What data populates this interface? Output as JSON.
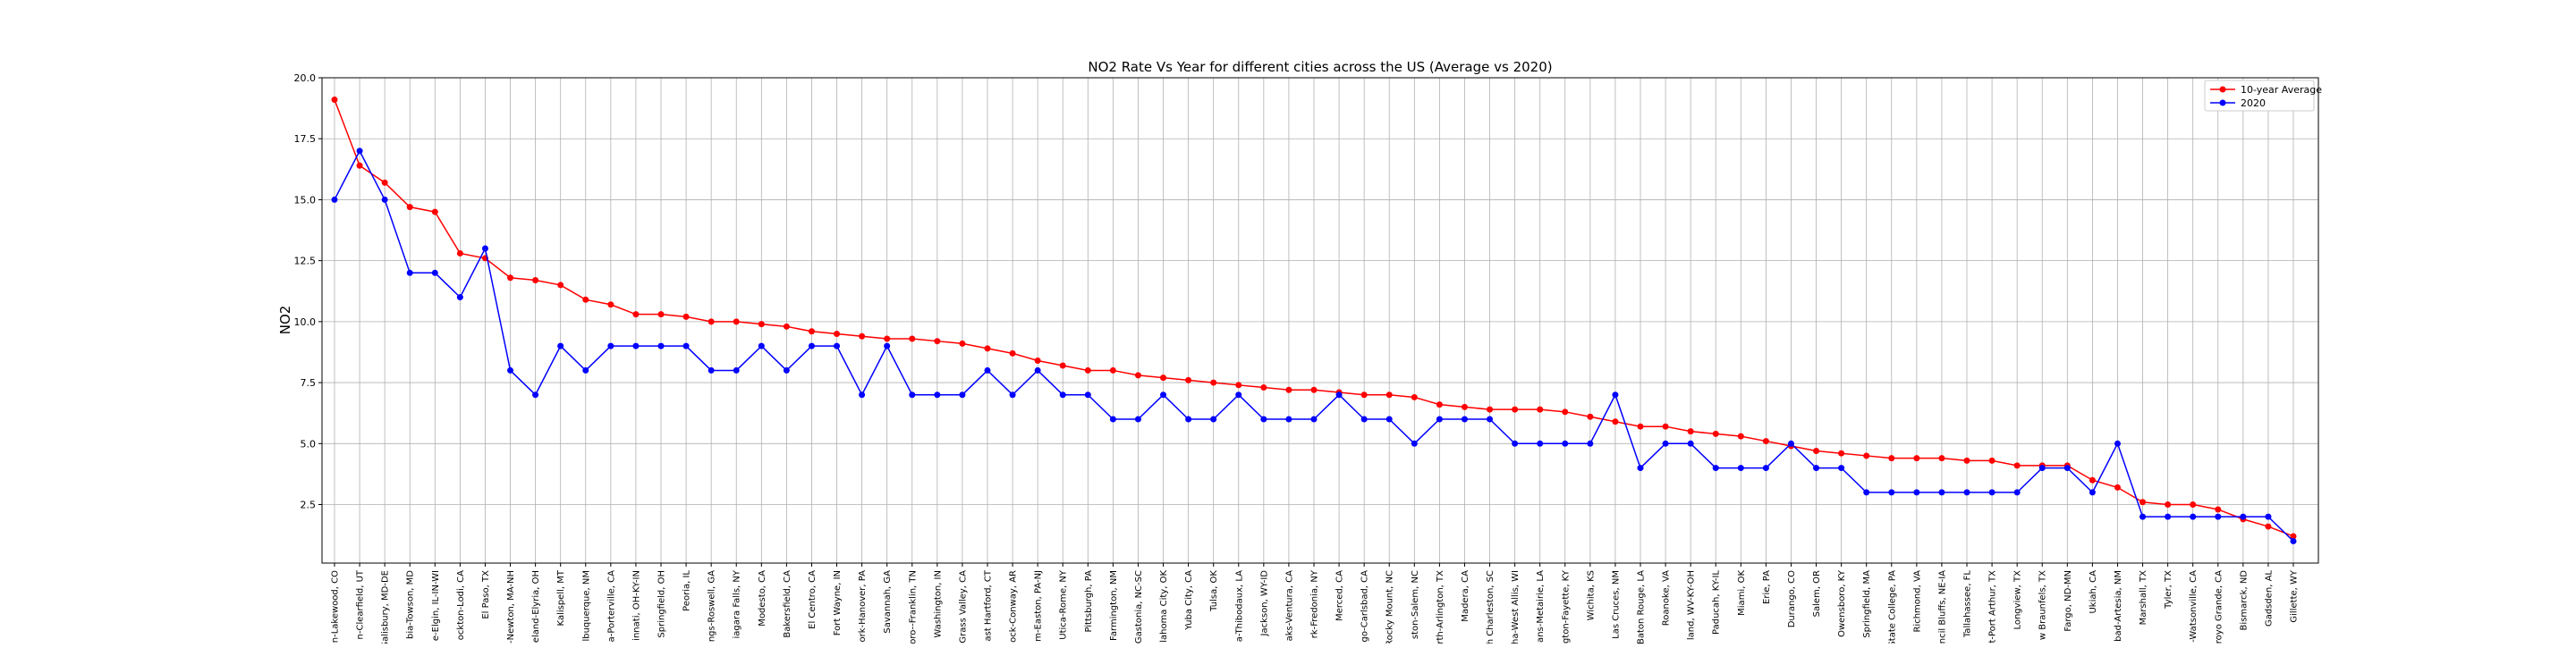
{
  "chart_data": {
    "type": "line",
    "title": "NO2 Rate Vs Year for different cities across the US (Average vs 2020)",
    "xlabel": "",
    "ylabel": "NO2",
    "ylim": [
      0.1,
      20.0
    ],
    "yticks": [
      "2.5",
      "5.0",
      "7.5",
      "10.0",
      "12.5",
      "15.0",
      "17.5",
      "20.0"
    ],
    "ytick_values": [
      2.5,
      5.0,
      7.5,
      10.0,
      12.5,
      15.0,
      17.5,
      20.0
    ],
    "grid": true,
    "legend_position": "top-right",
    "categories": [
      "n-Lakewood, CO",
      "n-Clearfield, UT",
      "Salisbury, MD-DE",
      "bia-Towson, MD",
      "e-Elgin, IL-IN-WI",
      "ockton-Lodi, CA",
      "El Paso, TX",
      "-Newton, MA-NH",
      "eland-Elyria, OH",
      "Kalispell, MT",
      "lbuquerque, NM",
      "a-Porterville, CA",
      "innati, OH-KY-IN",
      "Springfield, OH",
      "Peoria, IL",
      "ngs-Roswell, GA",
      "iagara Falls, NY",
      "Modesto, CA",
      "Bakersfield, CA",
      "El Centro, CA",
      "Fort Wayne, IN",
      "ork-Hanover, PA",
      "Savannah, GA",
      "oro--Franklin, TN",
      "Washington, IN",
      "Grass Valley, CA",
      "ast Hartford, CT",
      "ock-Conway, AR",
      "m-Easton, PA-NJ",
      "Utica-Rome, NY",
      "Pittsburgh, PA",
      "Farmington, NM",
      "Gastonia, NC-SC",
      "lahoma City, OK",
      "Yuba City, CA",
      "Tulsa, OK",
      "a-Thibodaux, LA",
      "Jackson, WY-ID",
      "aks-Ventura, CA",
      "rk-Fredonia, NY",
      "Merced, CA",
      "go-Carlsbad, CA",
      "Rocky Mount, NC",
      "ston-Salem, NC",
      "rth-Arlington, TX",
      "Madera, CA",
      "h Charleston, SC",
      "ha-West Allis, WI",
      "ans-Metairie, LA",
      "ngton-Fayette, KY",
      "Wichita, KS",
      "Las Cruces, NM",
      "Baton Rouge, LA",
      "Roanoke, VA",
      "land, WV-KY-OH",
      "Paducah, KY-IL",
      "Miami, OK",
      "Erie, PA",
      "Durango, CO",
      "Salem, OR",
      "Owensboro, KY",
      "Springfield, MA",
      "State College, PA",
      "Richmond, VA",
      "ncil Bluffs, NE-IA",
      "Tallahassee, FL",
      "t-Port Arthur, TX",
      "Longview, TX",
      "w Braunfels, TX",
      "Fargo, ND-MN",
      "Ukiah, CA",
      "bad-Artesia, NM",
      "Marshall, TX",
      "Tyler, TX",
      "-Watsonville, CA",
      "royo Grande, CA",
      "Bismarck, ND",
      "Gadsden, AL",
      "Gillette, WY"
    ],
    "series": [
      {
        "name": "10-year Average",
        "color": "#ff0000",
        "values": [
          19.1,
          16.4,
          15.7,
          14.7,
          14.5,
          12.8,
          12.6,
          11.8,
          11.7,
          11.5,
          10.9,
          10.7,
          10.3,
          10.3,
          10.2,
          10.0,
          10.0,
          9.9,
          9.8,
          9.6,
          9.5,
          9.4,
          9.3,
          9.3,
          9.2,
          9.1,
          8.9,
          8.7,
          8.4,
          8.2,
          8.0,
          8.0,
          7.8,
          7.7,
          7.6,
          7.5,
          7.4,
          7.3,
          7.2,
          7.2,
          7.1,
          7.0,
          7.0,
          6.9,
          6.6,
          6.5,
          6.4,
          6.4,
          6.4,
          6.3,
          6.1,
          5.9,
          5.7,
          5.7,
          5.5,
          5.4,
          5.3,
          5.1,
          4.9,
          4.7,
          4.6,
          4.5,
          4.4,
          4.4,
          4.4,
          4.3,
          4.3,
          4.1,
          4.1,
          4.1,
          3.5,
          3.2,
          2.6,
          2.5,
          2.5,
          2.3,
          1.9,
          1.6,
          1.2
        ]
      },
      {
        "name": "2020",
        "color": "#0000ff",
        "values": [
          15,
          17,
          15,
          12,
          12,
          11,
          13,
          8,
          7,
          9,
          8,
          9,
          9,
          9,
          9,
          8,
          8,
          9,
          8,
          9,
          9,
          7,
          9,
          7,
          7,
          7,
          8,
          7,
          8,
          7,
          7,
          6,
          6,
          7,
          6,
          6,
          7,
          6,
          6,
          6,
          7,
          6,
          6,
          5,
          6,
          6,
          6,
          5,
          5,
          5,
          5,
          7,
          4,
          5,
          5,
          4,
          4,
          4,
          5,
          4,
          4,
          3,
          3,
          3,
          3,
          3,
          3,
          3,
          4,
          4,
          3,
          5,
          2,
          2,
          2,
          2,
          2,
          2,
          1
        ]
      }
    ]
  }
}
